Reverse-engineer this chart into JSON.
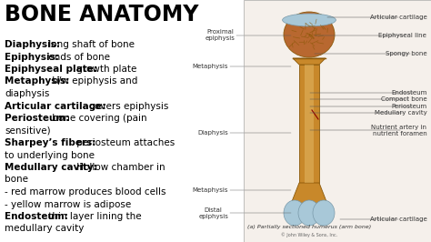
{
  "title": "BONE ANATOMY",
  "bg_left": "#ffffff",
  "bg_right": "#f5f0eb",
  "text_color": "#000000",
  "text_lines": [
    {
      "bold": "Diaphysis:",
      "normal": " long shaft of bone"
    },
    {
      "bold": "Epiphysis:",
      "normal": " ends of bone"
    },
    {
      "bold": "Epiphyseal plate:",
      "normal": " growth plate"
    },
    {
      "bold": "Metaphysis:",
      "normal": " b/w epiphysis and"
    },
    {
      "bold": "",
      "normal": "diaphysis"
    },
    {
      "bold": "Articular cartilage:",
      "normal": " covers epiphysis"
    },
    {
      "bold": "Periosteum:",
      "normal": " bone covering (pain"
    },
    {
      "bold": "",
      "normal": "sensitive)"
    },
    {
      "bold": "Sharpey’s fibers:",
      "normal": " periosteum attaches"
    },
    {
      "bold": "",
      "normal": "to underlying bone"
    },
    {
      "bold": "Medullary cavity:",
      "normal": " Hollow chamber in"
    },
    {
      "bold": "",
      "normal": "bone"
    },
    {
      "bold": "",
      "normal": "- red marrow produces blood cells"
    },
    {
      "bold": "",
      "normal": "- yellow marrow is adipose"
    },
    {
      "bold": "Endosteum:",
      "normal": " thin layer lining the"
    },
    {
      "bold": "",
      "normal": "medullary cavity"
    }
  ],
  "left_labels": [
    {
      "text": "Proximal\nepiphysis",
      "xf": 0.545,
      "yf": 0.855
    },
    {
      "text": "Metaphysis",
      "xf": 0.53,
      "yf": 0.725
    },
    {
      "text": "Diaphysis",
      "xf": 0.53,
      "yf": 0.45
    },
    {
      "text": "Metaphysis",
      "xf": 0.53,
      "yf": 0.215
    },
    {
      "text": "Distal\nepiphysis",
      "xf": 0.53,
      "yf": 0.12
    }
  ],
  "right_labels": [
    {
      "text": "Articular cartilage",
      "xf": 0.99,
      "yf": 0.93,
      "line_x1f": 0.76,
      "line_yf": 0.93
    },
    {
      "text": "Epiphyseal line",
      "xf": 0.99,
      "yf": 0.855,
      "line_x1f": 0.73,
      "line_yf": 0.855
    },
    {
      "text": "Spongy bone",
      "xf": 0.99,
      "yf": 0.78,
      "line_x1f": 0.73,
      "line_yf": 0.78
    },
    {
      "text": "Endosteum",
      "xf": 0.99,
      "yf": 0.618,
      "line_x1f": 0.72,
      "line_yf": 0.618
    },
    {
      "text": "Compact bone",
      "xf": 0.99,
      "yf": 0.59,
      "line_x1f": 0.72,
      "line_yf": 0.59
    },
    {
      "text": "Periosteum",
      "xf": 0.99,
      "yf": 0.562,
      "line_x1f": 0.72,
      "line_yf": 0.562
    },
    {
      "text": "Medullary cavity",
      "xf": 0.99,
      "yf": 0.535,
      "line_x1f": 0.72,
      "line_yf": 0.535
    },
    {
      "text": "Nutrient artery in\nnutrient foramen",
      "xf": 0.99,
      "yf": 0.462,
      "line_x1f": 0.72,
      "line_yf": 0.462
    }
  ],
  "right_label_bot": {
    "text": "Articular cartilage",
    "xf": 0.99,
    "yf": 0.095,
    "line_x1f": 0.79,
    "line_yf": 0.095
  },
  "caption": "(a) Partially sectioned humerus (arm bone)",
  "copyright": "© John Wiley & Sons, Inc.",
  "bone_color": "#c8882a",
  "bone_light": "#e8c070",
  "bone_dark": "#8a5808",
  "spongy_color": "#b86830",
  "cartilage_blue": "#a8c8d8",
  "cartilage_dark": "#7898a8"
}
